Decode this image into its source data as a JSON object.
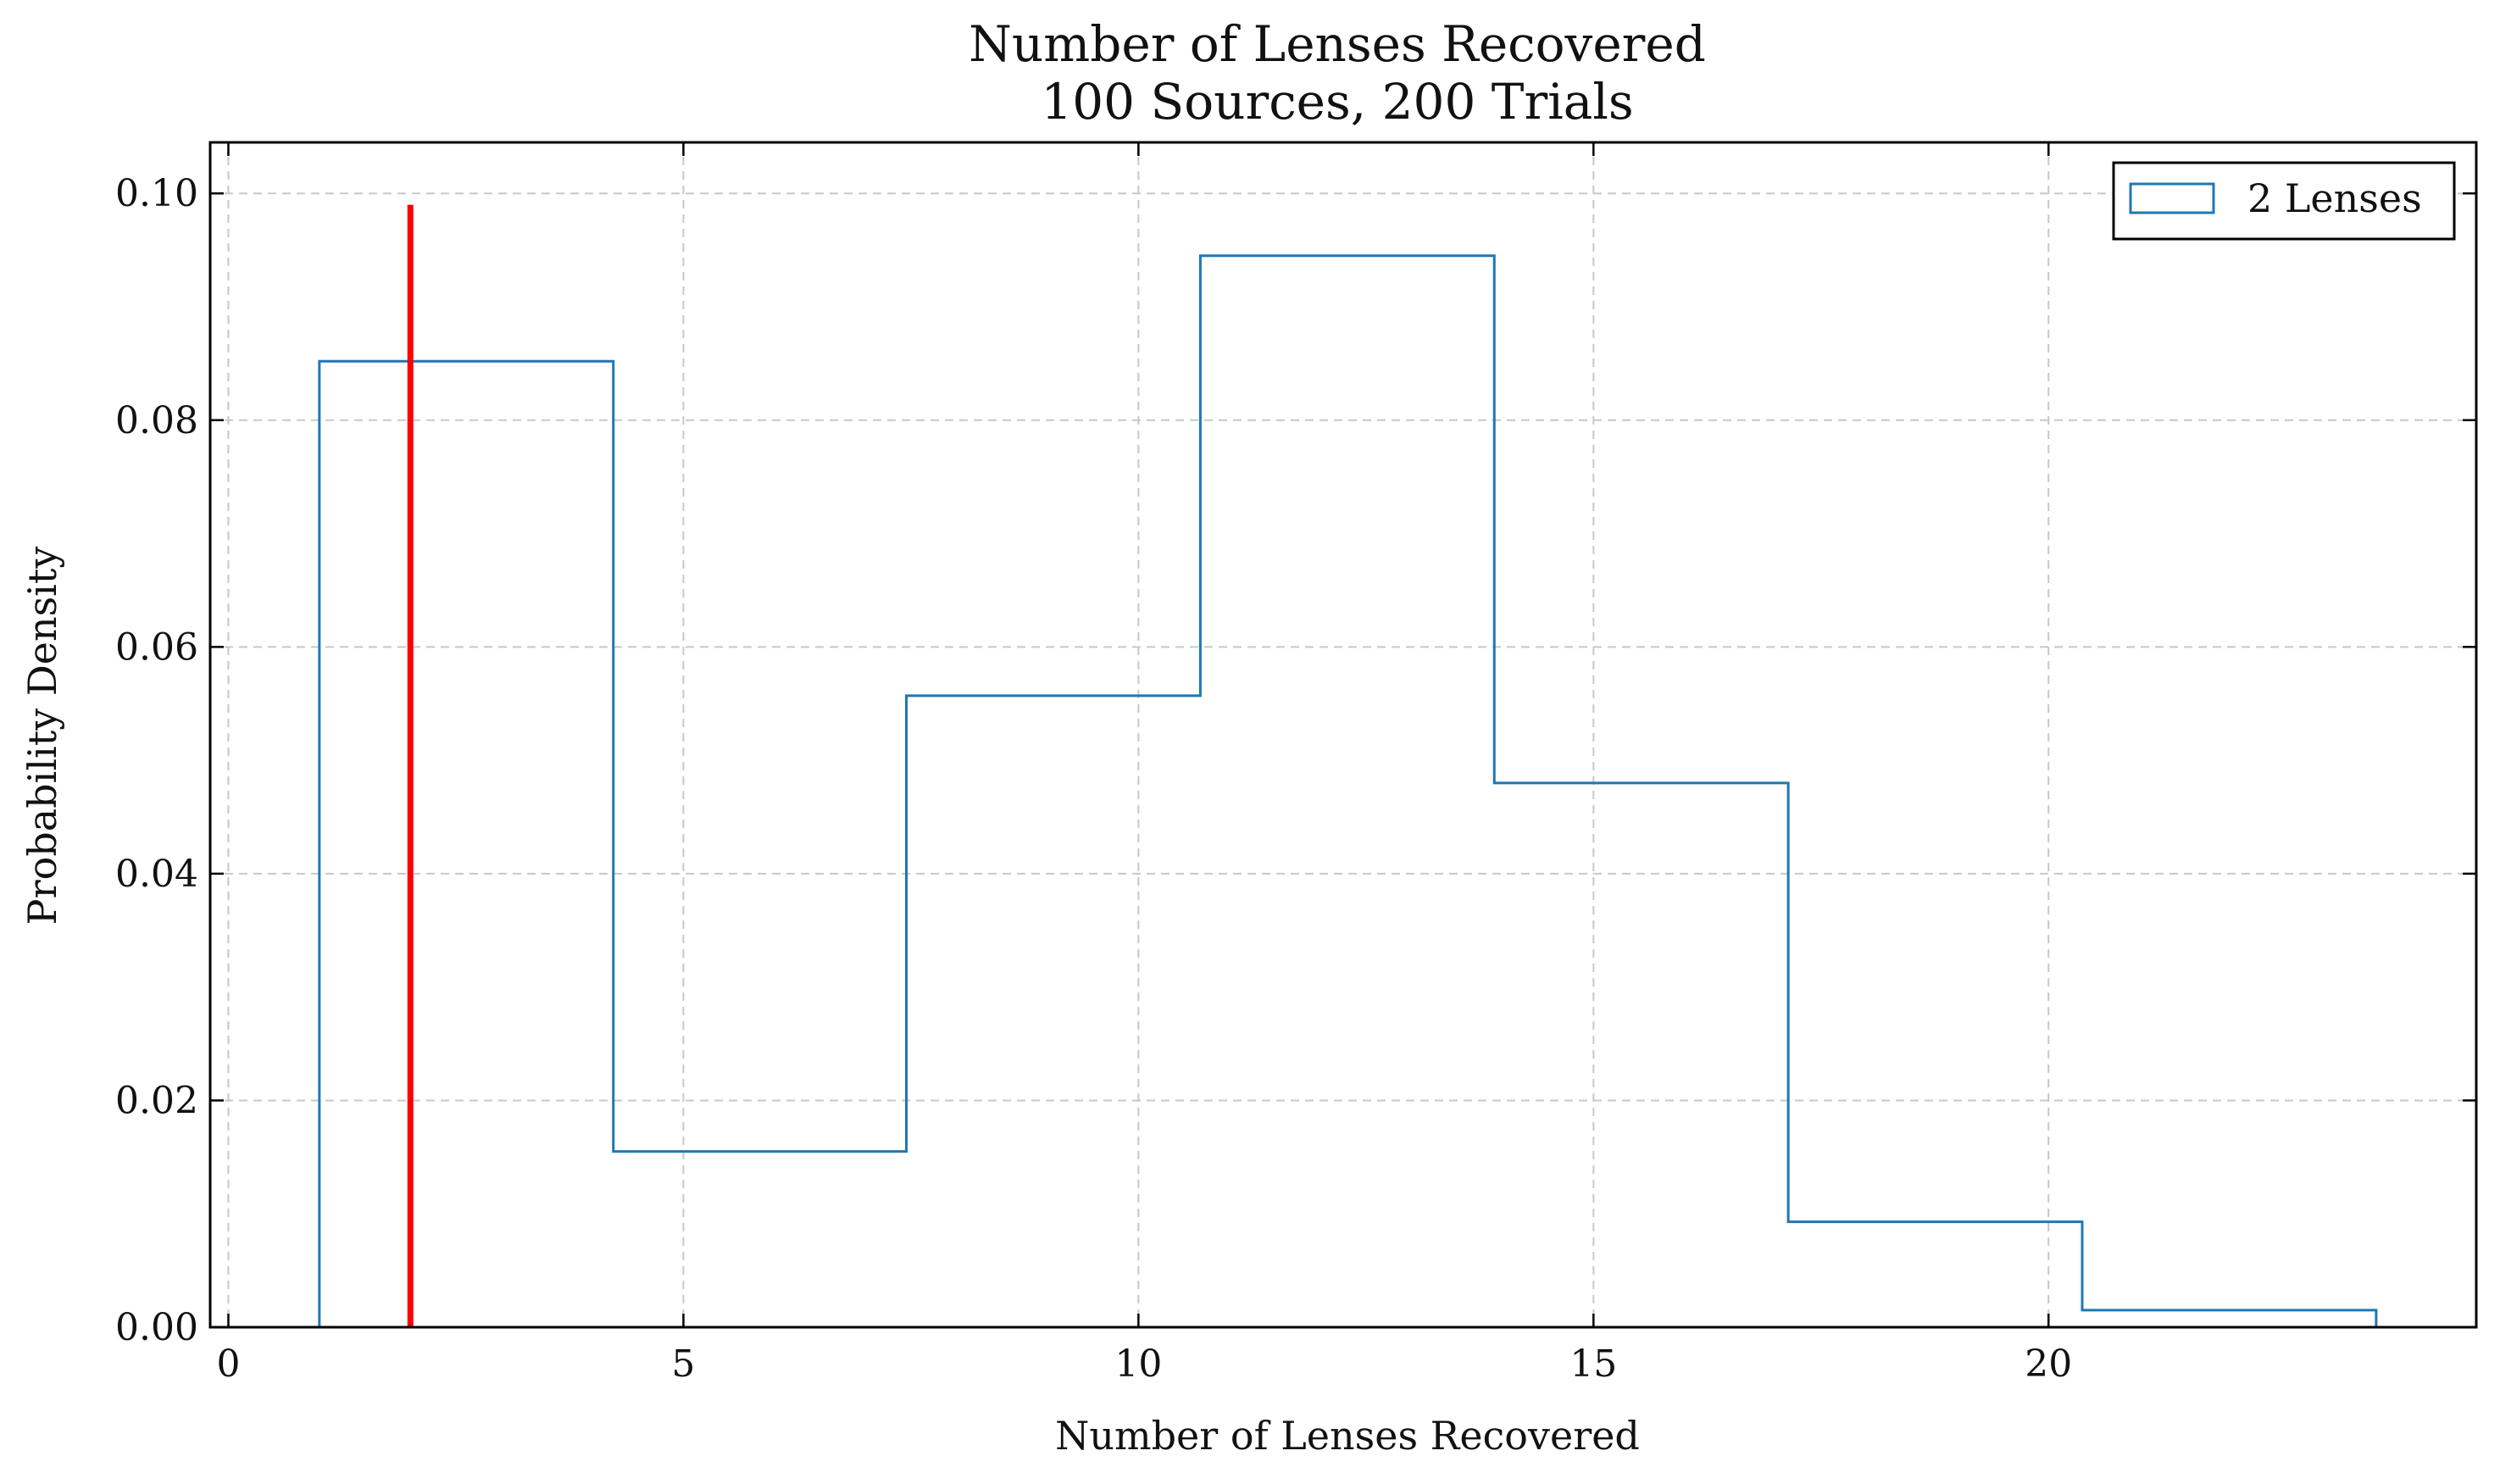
{
  "chart_data": {
    "type": "histogram",
    "title": "Number of Lenses Recovered",
    "subtitle": "100 Sources, 200 Trials",
    "xlabel": "Number of Lenses Recovered",
    "ylabel": "Probability Density",
    "xlim": [
      -0.2,
      24.7
    ],
    "ylim": [
      0,
      0.1045
    ],
    "xticks": [
      0,
      5,
      10,
      15,
      20
    ],
    "xtick_labels": [
      "0",
      "5",
      "10",
      "15",
      "20"
    ],
    "yticks": [
      0.0,
      0.02,
      0.04,
      0.06,
      0.08,
      0.1
    ],
    "ytick_labels": [
      "0.00",
      "0.02",
      "0.04",
      "0.06",
      "0.08",
      "0.10"
    ],
    "grid": true,
    "legend_position": "top-right",
    "series": [
      {
        "name": "2 Lenses",
        "color": "#1f77b4",
        "bin_edges": [
          1.0,
          4.23,
          7.45,
          10.68,
          13.91,
          17.14,
          20.37,
          23.6
        ],
        "values": [
          0.0852,
          0.0155,
          0.0557,
          0.0945,
          0.048,
          0.0093,
          0.0015
        ]
      }
    ],
    "vline": {
      "x": 2,
      "ymax": 0.099,
      "color": "#ff0000"
    }
  }
}
